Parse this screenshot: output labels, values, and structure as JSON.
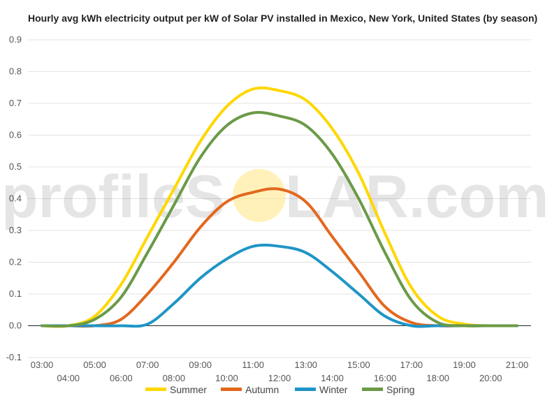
{
  "chart_data": {
    "type": "line",
    "title": "Hourly avg kWh electricity output per kW of Solar PV installed in Mexico, New York, United States (by season)",
    "xlabel": "",
    "ylabel": "",
    "ylim": [
      -0.1,
      0.9
    ],
    "yticks": [
      "-0.1",
      "0.0",
      "0.1",
      "0.2",
      "0.3",
      "0.4",
      "0.5",
      "0.6",
      "0.7",
      "0.8",
      "0.9"
    ],
    "x": [
      "03:00",
      "04:00",
      "05:00",
      "06:00",
      "07:00",
      "08:00",
      "09:00",
      "10:00",
      "11:00",
      "12:00",
      "13:00",
      "14:00",
      "15:00",
      "16:00",
      "17:00",
      "18:00",
      "19:00",
      "20:00",
      "21:00"
    ],
    "grid": true,
    "legend_position": "bottom",
    "series": [
      {
        "name": "Summer",
        "color": "#ffd700",
        "values": [
          0.0,
          0.0,
          0.03,
          0.13,
          0.28,
          0.43,
          0.58,
          0.69,
          0.745,
          0.74,
          0.71,
          0.62,
          0.48,
          0.29,
          0.12,
          0.03,
          0.005,
          0.0,
          0.0
        ]
      },
      {
        "name": "Autumn",
        "color": "#e2681e",
        "values": [
          0.0,
          0.0,
          0.0,
          0.02,
          0.1,
          0.2,
          0.31,
          0.39,
          0.42,
          0.43,
          0.39,
          0.28,
          0.17,
          0.06,
          0.01,
          0.0,
          0.0,
          0.0,
          0.0
        ]
      },
      {
        "name": "Winter",
        "color": "#1f95c6",
        "values": [
          0.0,
          0.0,
          0.0,
          0.0,
          0.005,
          0.07,
          0.15,
          0.21,
          0.25,
          0.25,
          0.23,
          0.17,
          0.1,
          0.03,
          0.0,
          0.0,
          0.0,
          0.0,
          0.0
        ]
      },
      {
        "name": "Spring",
        "color": "#6b9a47",
        "values": [
          0.0,
          0.0,
          0.02,
          0.09,
          0.23,
          0.38,
          0.53,
          0.63,
          0.67,
          0.66,
          0.63,
          0.54,
          0.4,
          0.23,
          0.08,
          0.01,
          0.0,
          0.0,
          0.0
        ]
      }
    ]
  },
  "watermark": {
    "left": "profileS",
    "right": "LAR.com",
    "sun_color": "#ffe680"
  }
}
